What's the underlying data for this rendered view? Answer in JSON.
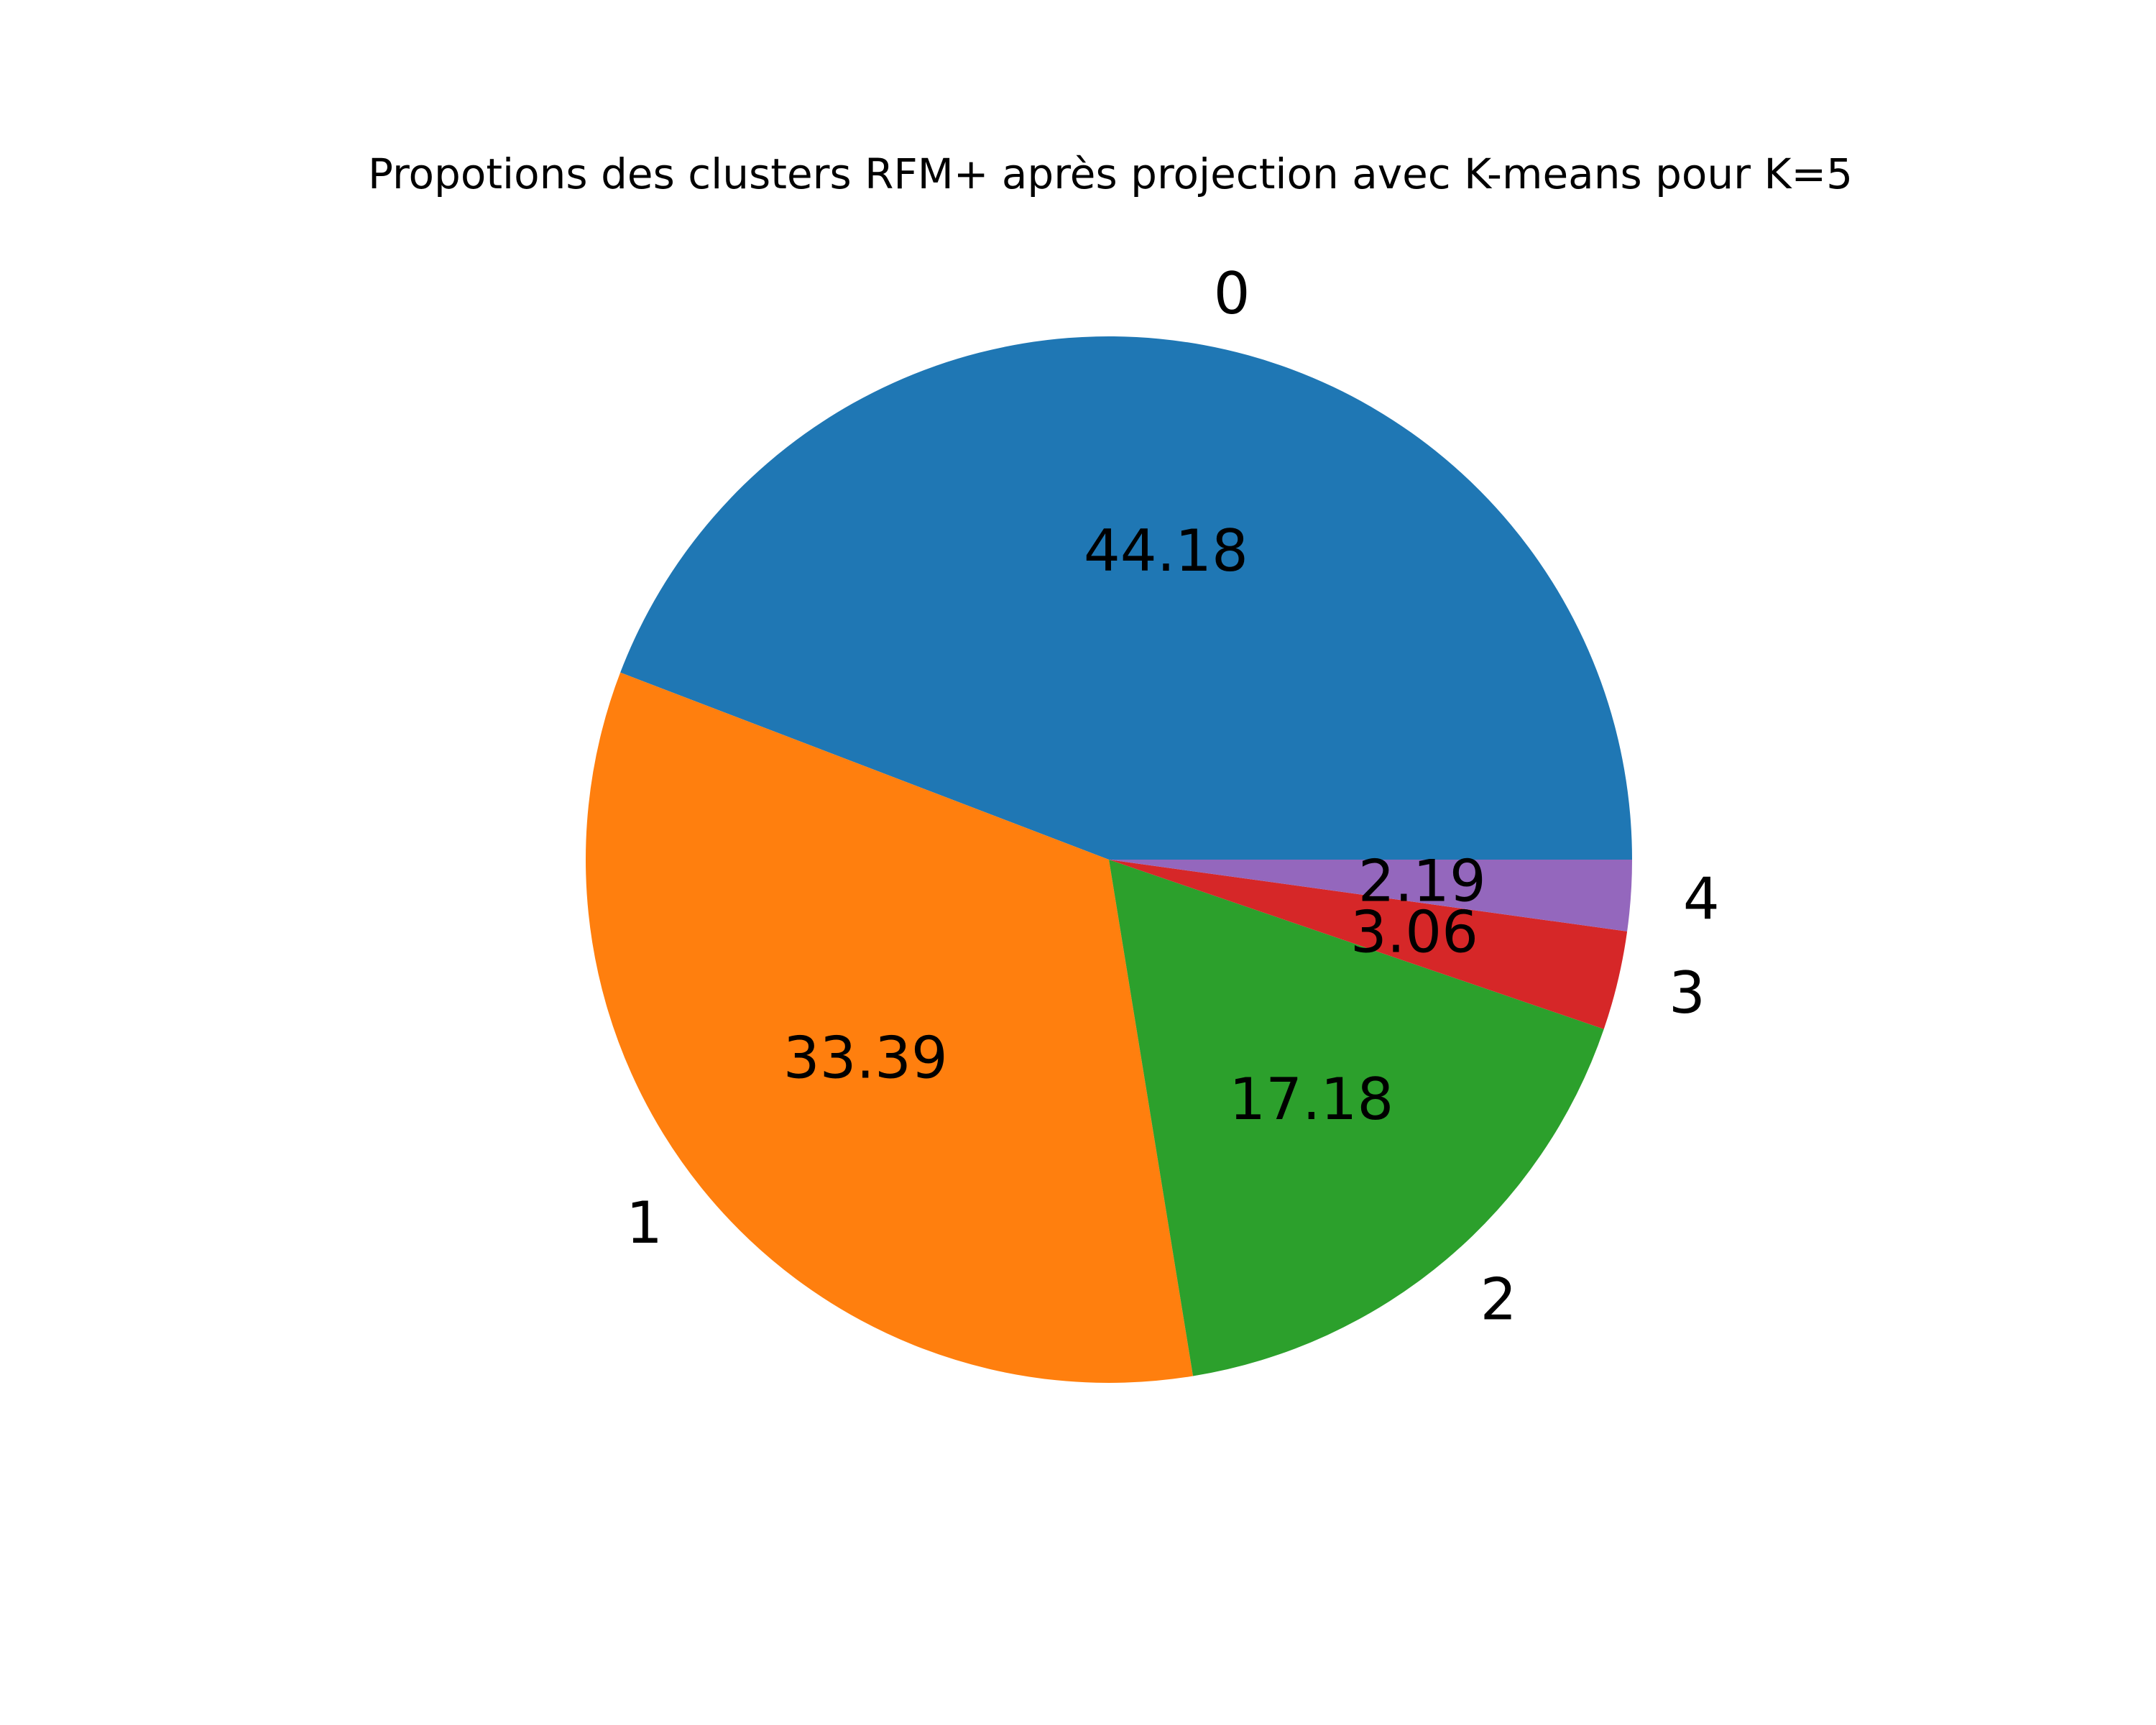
{
  "chart_data": {
    "type": "pie",
    "title": "Propotions des clusters RFM+ après projection avec K-means pour K=5",
    "categories": [
      "0",
      "1",
      "2",
      "3",
      "4"
    ],
    "values": [
      44.18,
      33.39,
      17.18,
      3.06,
      2.19
    ],
    "value_labels": [
      "44.18",
      "33.39",
      "17.18",
      "3.06",
      "2.19"
    ],
    "colors": [
      "#1f77b4",
      "#ff7f0e",
      "#2ca02c",
      "#d62728",
      "#9467bd"
    ],
    "start_angle_deg": 0,
    "direction": "counterclockwise",
    "legend": "none"
  }
}
